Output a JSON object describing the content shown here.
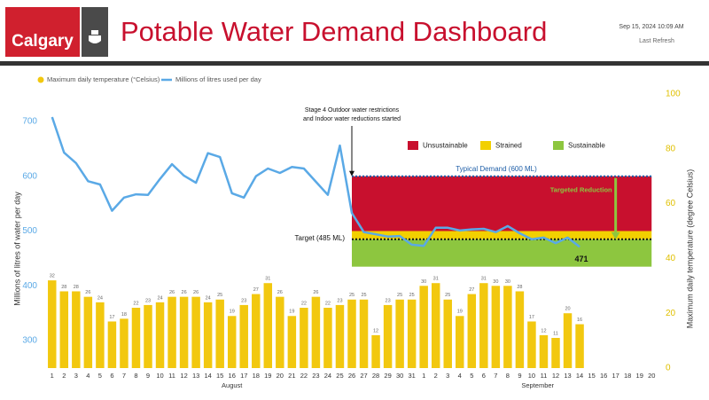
{
  "header": {
    "logo": "Calgary",
    "title": "Potable Water Demand Dashboard",
    "timestamp": "Sep 15, 2024 10:09 AM",
    "refresh": "Last Refresh"
  },
  "chart_data": {
    "type": "combo",
    "categories": [
      "1",
      "2",
      "3",
      "4",
      "5",
      "6",
      "7",
      "8",
      "9",
      "10",
      "11",
      "12",
      "13",
      "14",
      "15",
      "16",
      "17",
      "18",
      "19",
      "20",
      "21",
      "22",
      "23",
      "24",
      "25",
      "26",
      "27",
      "28",
      "29",
      "30",
      "31",
      "1",
      "2",
      "3",
      "4",
      "5",
      "6",
      "7",
      "8",
      "9",
      "10",
      "11",
      "12",
      "13",
      "14",
      "15",
      "16",
      "17",
      "18",
      "19",
      "20"
    ],
    "month_labels": [
      "August",
      "September"
    ],
    "series": [
      {
        "name": "Maximum daily temperature (°Celsius)",
        "color": "#f2c80f",
        "axis": "y2",
        "values": [
          32,
          28,
          28,
          26,
          24,
          17,
          18,
          22,
          23,
          24,
          26,
          26,
          26,
          24,
          25,
          19,
          23,
          27,
          31,
          26,
          19,
          22,
          26,
          22,
          23,
          25,
          25,
          12,
          23,
          25,
          25,
          30,
          31,
          25,
          19,
          27,
          31,
          30,
          30,
          28,
          17,
          12,
          11,
          20,
          16,
          null,
          null,
          null,
          null,
          null,
          null
        ]
      },
      {
        "name": "Millions of litres used per day",
        "color": "#5aa9e6",
        "axis": "y",
        "values": [
          708,
          643,
          624,
          591,
          585,
          537,
          561,
          567,
          566,
          595,
          622,
          601,
          588,
          642,
          635,
          569,
          561,
          600,
          614,
          606,
          617,
          614,
          590,
          566,
          656,
          533,
          498,
          494,
          490,
          491,
          475,
          473,
          506,
          506,
          501,
          503,
          504,
          498,
          509,
          496,
          485,
          488,
          478,
          488,
          471,
          null,
          null,
          null,
          null,
          null,
          null
        ]
      }
    ],
    "ylabel": "Millions of litres of water per day",
    "y2label": "Maximum daily temperature (degree Celsius)",
    "ylim": [
      250,
      750
    ],
    "yticks": [
      300,
      400,
      500,
      600,
      700
    ],
    "y2lim": [
      0,
      100
    ],
    "y2ticks": [
      0,
      20,
      40,
      60,
      80,
      100
    ],
    "annotation": {
      "text": [
        "Stage 4 Outdoor water restrictions",
        "and Indoor water reductions started"
      ],
      "at": "26"
    },
    "zones": [
      {
        "name": "Unsustainable",
        "color": "#c8102e",
        "range": [
          500,
          600
        ]
      },
      {
        "name": "Strained",
        "color": "#f2d000",
        "range": [
          485,
          500
        ]
      },
      {
        "name": "Sustainable",
        "color": "#8dc63f",
        "range": [
          435,
          485
        ]
      }
    ],
    "typical_demand": {
      "label": "Typical Demand (600 ML)",
      "value": 600
    },
    "target": {
      "label": "Target (485 ML)",
      "value": 485
    },
    "reduction_label": "Targeted Reduction"
  }
}
